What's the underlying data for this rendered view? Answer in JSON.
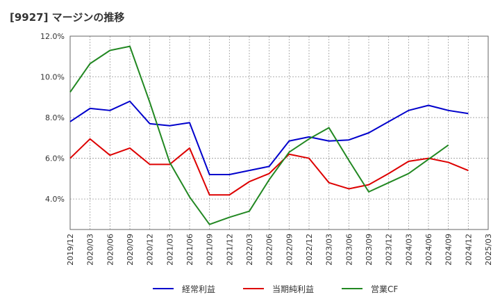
{
  "chart_data": {
    "type": "line",
    "title": "[9927]  マージンの推移",
    "x": [
      "2019/12",
      "2020/03",
      "2020/06",
      "2020/09",
      "2020/12",
      "2021/03",
      "2021/06",
      "2021/09",
      "2021/12",
      "2022/03",
      "2022/06",
      "2022/09",
      "2022/12",
      "2023/03",
      "2023/06",
      "2023/09",
      "2023/12",
      "2024/03",
      "2024/06",
      "2024/09",
      "2024/12",
      "2025/03"
    ],
    "ylim": [
      2.5,
      12.0
    ],
    "yticks": [
      4.0,
      6.0,
      8.0,
      10.0,
      12.0
    ],
    "ytick_labels": [
      "4.0%",
      "6.0%",
      "8.0%",
      "10.0%",
      "12.0%"
    ],
    "grid": true,
    "legend_position": "bottom",
    "series": [
      {
        "name": "経常利益",
        "color": "#0000cc",
        "values": [
          7.8,
          8.45,
          8.35,
          8.8,
          7.7,
          7.6,
          7.75,
          5.2,
          5.2,
          5.4,
          5.6,
          6.85,
          7.05,
          6.85,
          6.9,
          7.25,
          7.8,
          8.35,
          8.6,
          8.35,
          8.2,
          null
        ]
      },
      {
        "name": "当期純利益",
        "color": "#dd0000",
        "values": [
          6.0,
          6.95,
          6.15,
          6.5,
          5.7,
          5.7,
          6.5,
          4.2,
          4.2,
          4.85,
          5.25,
          6.2,
          6.0,
          4.8,
          4.5,
          4.7,
          5.25,
          5.85,
          6.0,
          5.8,
          5.4,
          null
        ]
      },
      {
        "name": "営業CF",
        "color": "#228822",
        "values": [
          9.25,
          10.65,
          11.3,
          11.5,
          8.75,
          5.8,
          4.1,
          2.75,
          3.1,
          3.4,
          4.95,
          6.3,
          6.95,
          7.5,
          5.9,
          4.35,
          4.8,
          5.25,
          5.95,
          6.65,
          null,
          null
        ]
      }
    ]
  }
}
